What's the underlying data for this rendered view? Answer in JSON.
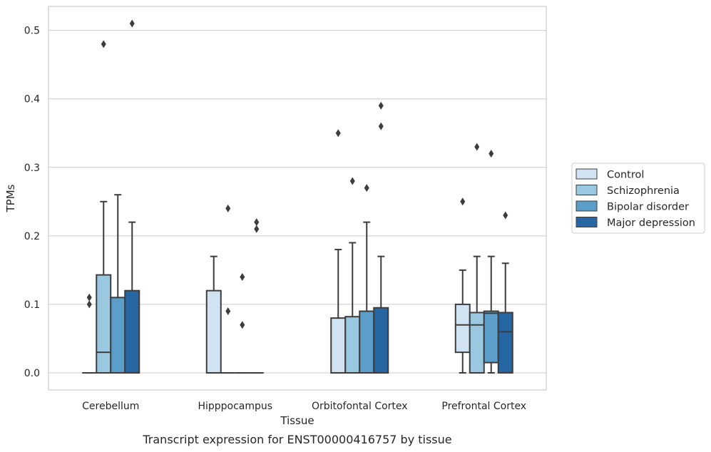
{
  "caption": "Transcript expression for ENST00000416757 by tissue",
  "chart_data": {
    "type": "box",
    "xlabel": "Tissue",
    "ylabel": "TPMs",
    "ylim": [
      -0.025,
      0.535
    ],
    "yticks": [
      "0.0",
      "0.1",
      "0.2",
      "0.3",
      "0.4",
      "0.5"
    ],
    "grid": true,
    "legend_position": "right",
    "categories": [
      "Cerebellum",
      "Hipppocampus",
      "Orbitofontal Cortex",
      "Prefrontal Cortex"
    ],
    "series": [
      {
        "name": "Control",
        "color": "#d1e2f2",
        "boxes": [
          {
            "q1": 0,
            "median": 0,
            "q3": 0,
            "whisker_low": 0,
            "whisker_high": 0,
            "outliers": [
              0.1,
              0.11
            ]
          },
          {
            "q1": 0,
            "median": 0,
            "q3": 0.12,
            "whisker_low": 0,
            "whisker_high": 0.17,
            "outliers": []
          },
          {
            "q1": 0,
            "median": 0,
            "q3": 0.08,
            "whisker_low": 0,
            "whisker_high": 0.18,
            "outliers": [
              0.35
            ]
          },
          {
            "q1": 0.03,
            "median": 0.07,
            "q3": 0.1,
            "whisker_low": 0,
            "whisker_high": 0.15,
            "outliers": [
              0.25
            ]
          }
        ]
      },
      {
        "name": "Schizophrenia",
        "color": "#9ac8e0",
        "boxes": [
          {
            "q1": 0,
            "median": 0.03,
            "q3": 0.143,
            "whisker_low": 0,
            "whisker_high": 0.25,
            "outliers": [
              0.48
            ]
          },
          {
            "q1": 0,
            "median": 0,
            "q3": 0,
            "whisker_low": 0,
            "whisker_high": 0,
            "outliers": [
              0.09,
              0.24
            ]
          },
          {
            "q1": 0,
            "median": 0,
            "q3": 0.082,
            "whisker_low": 0,
            "whisker_high": 0.19,
            "outliers": [
              0.28
            ]
          },
          {
            "q1": 0,
            "median": 0.07,
            "q3": 0.088,
            "whisker_low": 0,
            "whisker_high": 0.17,
            "outliers": [
              0.33
            ]
          }
        ]
      },
      {
        "name": "Bipolar disorder",
        "color": "#5a9ec9",
        "boxes": [
          {
            "q1": 0,
            "median": 0,
            "q3": 0.11,
            "whisker_low": 0,
            "whisker_high": 0.26,
            "outliers": []
          },
          {
            "q1": 0,
            "median": 0,
            "q3": 0,
            "whisker_low": 0,
            "whisker_high": 0,
            "outliers": [
              0.07,
              0.14
            ]
          },
          {
            "q1": 0,
            "median": 0,
            "q3": 0.09,
            "whisker_low": 0,
            "whisker_high": 0.22,
            "outliers": [
              0.27
            ]
          },
          {
            "q1": 0.015,
            "median": 0.087,
            "q3": 0.09,
            "whisker_low": 0,
            "whisker_high": 0.17,
            "outliers": [
              0.32
            ]
          }
        ]
      },
      {
        "name": "Major depression",
        "color": "#2666a3",
        "boxes": [
          {
            "q1": 0,
            "median": 0,
            "q3": 0.12,
            "whisker_low": 0,
            "whisker_high": 0.22,
            "outliers": [
              0.51
            ]
          },
          {
            "q1": 0,
            "median": 0,
            "q3": 0,
            "whisker_low": 0,
            "whisker_high": 0,
            "outliers": [
              0.21,
              0.22
            ]
          },
          {
            "q1": 0,
            "median": 0,
            "q3": 0.095,
            "whisker_low": 0,
            "whisker_high": 0.17,
            "outliers": [
              0.36,
              0.39
            ]
          },
          {
            "q1": 0,
            "median": 0.06,
            "q3": 0.088,
            "whisker_low": 0,
            "whisker_high": 0.16,
            "outliers": [
              0.23
            ]
          }
        ]
      }
    ]
  }
}
